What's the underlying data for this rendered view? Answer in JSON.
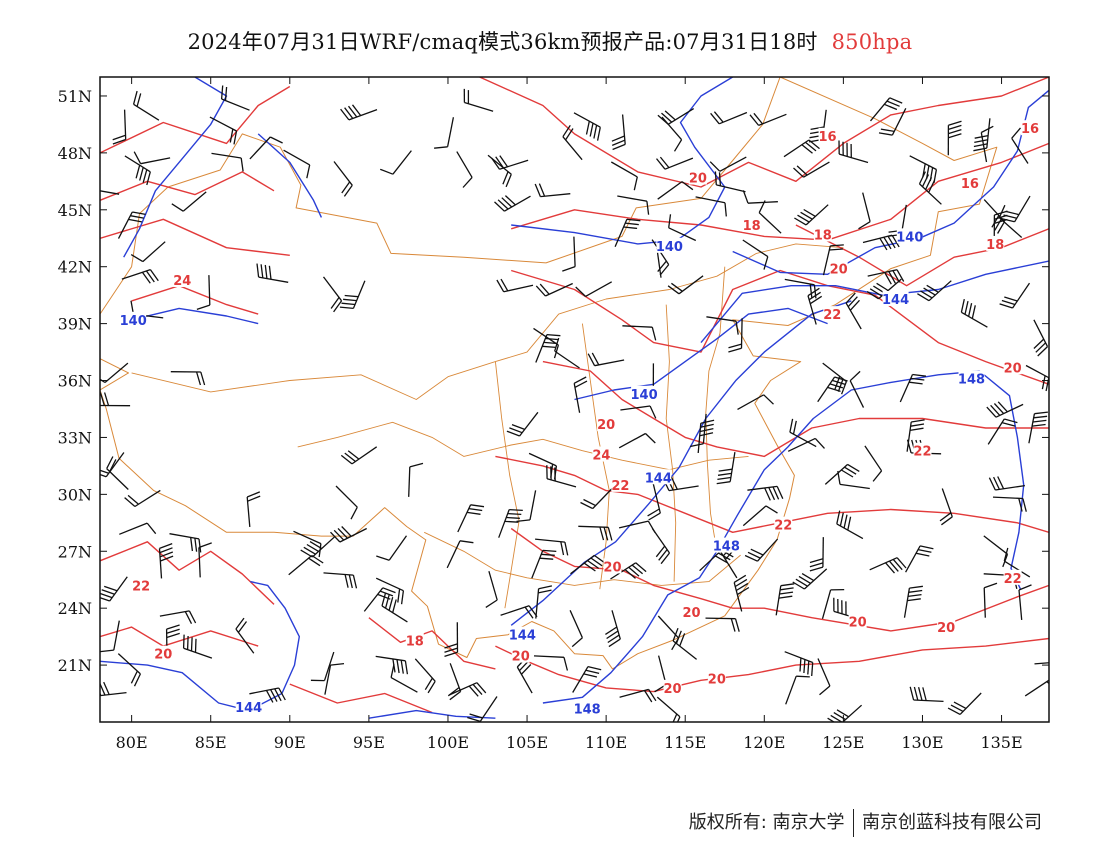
{
  "header": {
    "title": "2024年07月31日WRF/cmaq模式36km预报产品:07月31日18时",
    "level": "850hpa"
  },
  "footer": {
    "copyright": "版权所有: 南京大学",
    "company": "南京创蓝科技有限公司"
  },
  "map": {
    "lon_range": [
      78,
      138
    ],
    "lat_range": [
      18,
      52
    ],
    "x_ticks": [
      {
        "lon": 80,
        "label": "80E"
      },
      {
        "lon": 85,
        "label": "85E"
      },
      {
        "lon": 90,
        "label": "90E"
      },
      {
        "lon": 95,
        "label": "95E"
      },
      {
        "lon": 100,
        "label": "100E"
      },
      {
        "lon": 105,
        "label": "105E"
      },
      {
        "lon": 110,
        "label": "110E"
      },
      {
        "lon": 115,
        "label": "115E"
      },
      {
        "lon": 120,
        "label": "120E"
      },
      {
        "lon": 125,
        "label": "125E"
      },
      {
        "lon": 130,
        "label": "130E"
      },
      {
        "lon": 135,
        "label": "135E"
      }
    ],
    "y_ticks": [
      {
        "lat": 51,
        "label": "51N"
      },
      {
        "lat": 48,
        "label": "48N"
      },
      {
        "lat": 45,
        "label": "45N"
      },
      {
        "lat": 42,
        "label": "42N"
      },
      {
        "lat": 39,
        "label": "39N"
      },
      {
        "lat": 36,
        "label": "36N"
      },
      {
        "lat": 33,
        "label": "33N"
      },
      {
        "lat": 30,
        "label": "30N"
      },
      {
        "lat": 27,
        "label": "27N"
      },
      {
        "lat": 24,
        "label": "24N"
      },
      {
        "lat": 21,
        "label": "21N"
      }
    ],
    "colors": {
      "temperature": "#e23b3b",
      "height": "#2a3fd6",
      "boundary": "#d9893a",
      "wind": "#111111"
    },
    "temperature_labels": [
      {
        "lon": 124.0,
        "lat": 48.9,
        "text": "16"
      },
      {
        "lon": 136.8,
        "lat": 49.3,
        "text": "16"
      },
      {
        "lon": 133.0,
        "lat": 46.4,
        "text": "16"
      },
      {
        "lon": 115.8,
        "lat": 46.7,
        "text": "20"
      },
      {
        "lon": 119.2,
        "lat": 44.2,
        "text": "18"
      },
      {
        "lon": 123.7,
        "lat": 43.7,
        "text": "18"
      },
      {
        "lon": 134.6,
        "lat": 43.2,
        "text": "18"
      },
      {
        "lon": 124.7,
        "lat": 41.9,
        "text": "20"
      },
      {
        "lon": 83.2,
        "lat": 41.3,
        "text": "24"
      },
      {
        "lon": 124.3,
        "lat": 39.5,
        "text": "22"
      },
      {
        "lon": 135.7,
        "lat": 36.7,
        "text": "20"
      },
      {
        "lon": 110.0,
        "lat": 33.7,
        "text": "20"
      },
      {
        "lon": 109.7,
        "lat": 32.1,
        "text": "24"
      },
      {
        "lon": 110.9,
        "lat": 30.5,
        "text": "22"
      },
      {
        "lon": 130.0,
        "lat": 32.3,
        "text": "22"
      },
      {
        "lon": 121.2,
        "lat": 28.4,
        "text": "22"
      },
      {
        "lon": 110.4,
        "lat": 26.2,
        "text": "20"
      },
      {
        "lon": 115.4,
        "lat": 23.8,
        "text": "20"
      },
      {
        "lon": 125.9,
        "lat": 23.3,
        "text": "20"
      },
      {
        "lon": 131.5,
        "lat": 23.0,
        "text": "20"
      },
      {
        "lon": 135.7,
        "lat": 25.6,
        "text": "22"
      },
      {
        "lon": 80.6,
        "lat": 25.2,
        "text": "22"
      },
      {
        "lon": 82.0,
        "lat": 21.6,
        "text": "20"
      },
      {
        "lon": 97.9,
        "lat": 22.3,
        "text": "18"
      },
      {
        "lon": 104.6,
        "lat": 21.5,
        "text": "20"
      },
      {
        "lon": 114.2,
        "lat": 19.8,
        "text": "20"
      },
      {
        "lon": 117.0,
        "lat": 20.3,
        "text": "20"
      }
    ],
    "height_labels": [
      {
        "lon": 80.1,
        "lat": 39.2,
        "text": "140"
      },
      {
        "lon": 114.0,
        "lat": 43.1,
        "text": "140"
      },
      {
        "lon": 129.2,
        "lat": 43.6,
        "text": "140"
      },
      {
        "lon": 128.3,
        "lat": 40.3,
        "text": "144"
      },
      {
        "lon": 112.4,
        "lat": 35.3,
        "text": "140"
      },
      {
        "lon": 133.1,
        "lat": 36.1,
        "text": "148"
      },
      {
        "lon": 113.3,
        "lat": 30.9,
        "text": "144"
      },
      {
        "lon": 117.6,
        "lat": 27.3,
        "text": "148"
      },
      {
        "lon": 104.7,
        "lat": 22.6,
        "text": "144"
      },
      {
        "lon": 87.4,
        "lat": 18.8,
        "text": "144"
      },
      {
        "lon": 108.8,
        "lat": 18.7,
        "text": "148"
      }
    ]
  }
}
